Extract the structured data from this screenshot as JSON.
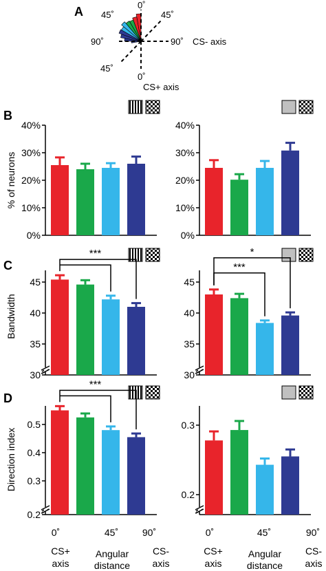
{
  "colors": {
    "red": "#e8242b",
    "green": "#1aa84a",
    "cyan": "#35b6ea",
    "navy": "#2e3a92"
  },
  "icons": {
    "grating": "vertical-grating-icon",
    "gray": "gray-square-icon",
    "checker": "checker-pattern-icon"
  },
  "panel_a": {
    "letter": "A",
    "angle_top": "0˚",
    "angle_upper_left": "45˚",
    "angle_upper_right": "45˚",
    "angle_left": "90˚",
    "angle_right": "90˚",
    "angle_lower_left": "45˚",
    "angle_bottom": "0˚",
    "cs_minus_axis": "CS- axis",
    "cs_plus_axis": "CS+ axis"
  },
  "row_letters": {
    "b": "B",
    "c": "C",
    "d": "D"
  },
  "ylabels": {
    "b": "% of neurons",
    "c": "Bandwidth",
    "d": "Direction index"
  },
  "xaxis": {
    "tick_0": "0˚",
    "tick_45": "45˚",
    "tick_90": "90˚",
    "cs_plus_1": "CS+",
    "cs_plus_2": "axis",
    "angular_1": "Angular",
    "angular_2": "distance",
    "cs_minus_1": "CS-",
    "cs_minus_2": "axis"
  },
  "chart_data": [
    {
      "id": "B-left",
      "type": "bar",
      "ylabel": "% of neurons",
      "categories": [
        "0˚",
        "",
        "45˚",
        "90˚"
      ],
      "values": [
        25.5,
        24.0,
        24.5,
        26.0
      ],
      "errors": [
        2.8,
        2.0,
        1.7,
        2.6
      ],
      "ylim": [
        0,
        40
      ],
      "yticks": [
        0,
        10,
        20,
        30,
        40
      ],
      "ytick_labels": [
        "0%",
        "10%",
        "20%",
        "30%",
        "40%"
      ],
      "significance": []
    },
    {
      "id": "B-right",
      "type": "bar",
      "categories": [
        "0˚",
        "",
        "45˚",
        "90˚"
      ],
      "values": [
        24.5,
        20.2,
        24.5,
        30.8
      ],
      "errors": [
        2.8,
        2.0,
        2.5,
        2.8
      ],
      "ylim": [
        0,
        40
      ],
      "yticks": [
        0,
        10,
        20,
        30,
        40
      ],
      "ytick_labels": [
        "0%",
        "10%",
        "20%",
        "30%",
        "40%"
      ],
      "significance": []
    },
    {
      "id": "C-left",
      "type": "bar",
      "ylabel": "Bandwidth",
      "categories": [
        "0˚",
        "",
        "45˚",
        "90˚"
      ],
      "values": [
        45.4,
        44.6,
        42.2,
        41.0
      ],
      "errors": [
        0.7,
        0.7,
        0.6,
        0.6
      ],
      "ylim": [
        30,
        47
      ],
      "yticks": [
        30,
        35,
        40,
        45
      ],
      "ytick_labels": [
        "30",
        "35",
        "40",
        "45"
      ],
      "axis_break": true,
      "significance": [
        {
          "label": "***",
          "from": 0,
          "to": [
            2,
            3
          ]
        }
      ]
    },
    {
      "id": "C-right",
      "type": "bar",
      "categories": [
        "0˚",
        "",
        "45˚",
        "90˚"
      ],
      "values": [
        43.0,
        42.4,
        38.4,
        39.6
      ],
      "errors": [
        0.8,
        0.7,
        0.4,
        0.5
      ],
      "ylim": [
        30,
        47
      ],
      "yticks": [
        30,
        35,
        40,
        45
      ],
      "ytick_labels": [
        "30",
        "35",
        "40",
        "45"
      ],
      "axis_break": true,
      "significance": [
        {
          "label": "*",
          "from": 0,
          "to": [
            3
          ]
        },
        {
          "label": "***",
          "from": 0,
          "to": [
            2
          ]
        }
      ]
    },
    {
      "id": "D-left",
      "type": "bar",
      "ylabel": "Direction index",
      "categories": [
        "0˚",
        "",
        "45˚",
        "90˚"
      ],
      "values": [
        0.55,
        0.525,
        0.48,
        0.455
      ],
      "errors": [
        0.015,
        0.014,
        0.013,
        0.013
      ],
      "ylim": [
        0.2,
        0.6
      ],
      "yticks": [
        0.2,
        0.3,
        0.4,
        0.5
      ],
      "ytick_labels": [
        "0.2",
        "0.3",
        "0.4",
        "0.5"
      ],
      "axis_break": true,
      "significance": [
        {
          "label": "***",
          "from": 0,
          "to": [
            2,
            3
          ]
        }
      ]
    },
    {
      "id": "D-right",
      "type": "bar",
      "categories": [
        "0˚",
        "",
        "45˚",
        "90˚"
      ],
      "values": [
        0.278,
        0.293,
        0.243,
        0.255
      ],
      "errors": [
        0.013,
        0.013,
        0.009,
        0.01
      ],
      "ylim": [
        0.15,
        0.33
      ],
      "yticks": [
        0.2,
        0.3
      ],
      "ytick_labels": [
        "0.2",
        "0.3"
      ],
      "axis_break": true,
      "significance": []
    }
  ]
}
